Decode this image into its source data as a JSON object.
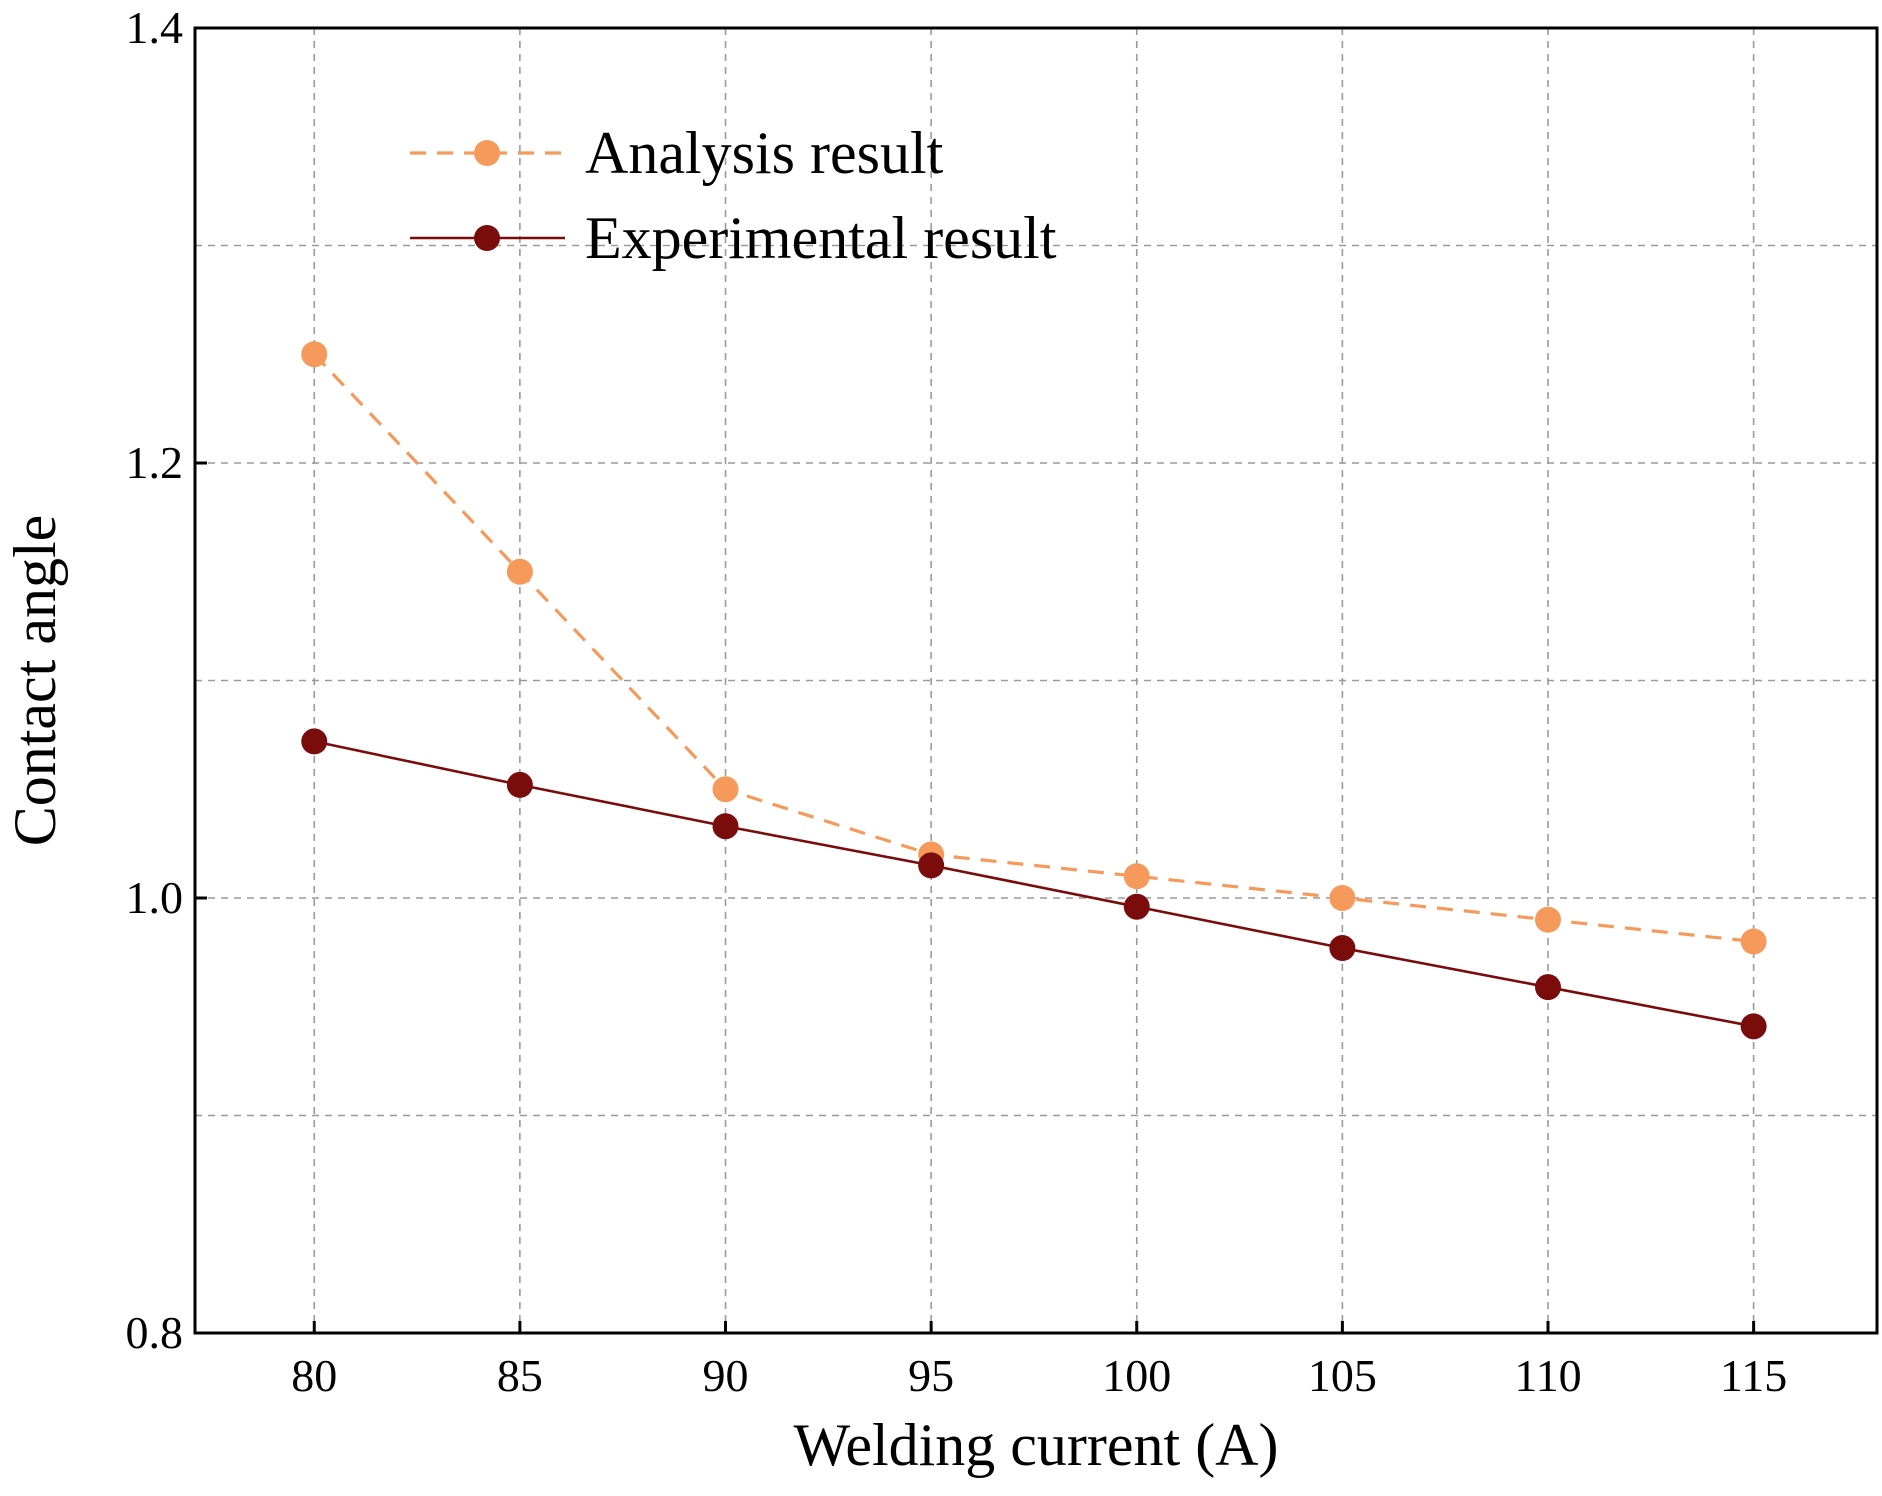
{
  "chart_data": {
    "type": "line",
    "title": "",
    "xlabel": "Welding current (A)",
    "ylabel": "Contact angle",
    "x": [
      80,
      85,
      90,
      95,
      100,
      105,
      110,
      115
    ],
    "xlim": [
      77.1,
      118
    ],
    "ylim": [
      0.8,
      1.4
    ],
    "xticks": [
      "80",
      "85",
      "90",
      "95",
      "100",
      "105",
      "110",
      "115"
    ],
    "yticks": [
      0.8,
      1.0,
      1.2,
      1.4
    ],
    "ytick_labels": [
      "0.8",
      "1.0",
      "1.2",
      "1.4"
    ],
    "grid": true,
    "legend_position": "top-left",
    "series": [
      {
        "name": "Analysis result",
        "color": "#f59a5a",
        "line_style": "dashed",
        "values": [
          1.25,
          1.15,
          1.05,
          1.02,
          1.01,
          1.0,
          0.99,
          0.98
        ]
      },
      {
        "name": "Experimental result",
        "color": "#7a0c0c",
        "line_style": "solid",
        "values": [
          1.072,
          1.052,
          1.033,
          1.015,
          0.996,
          0.977,
          0.959,
          0.941
        ]
      }
    ]
  }
}
